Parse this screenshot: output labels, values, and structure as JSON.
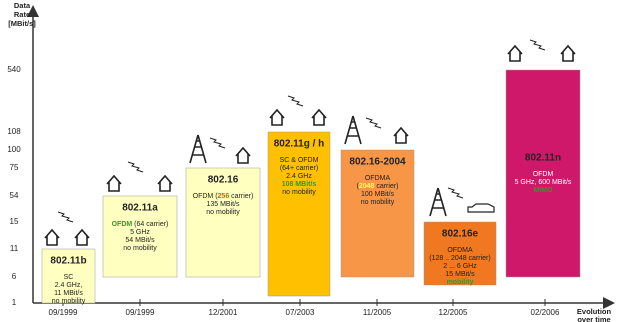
{
  "axis": {
    "y_label": [
      "Data",
      "Rate",
      "[MBit/s]"
    ],
    "x_label": [
      "Evolution",
      "over time"
    ],
    "y_ticks": [
      "540",
      "108",
      "100",
      "75",
      "54",
      "15",
      "11",
      "6",
      "1"
    ]
  },
  "dates": [
    "09/1999",
    "09/1999",
    "12/2001",
    "07/2003",
    "11/2005",
    "12/2005",
    "02/2006"
  ],
  "boxes": [
    {
      "title": "802.11b",
      "lines": [
        [
          "SC"
        ],
        [
          "2.4 GHz,"
        ],
        [
          "11 MBit/s"
        ],
        [
          "no mobility"
        ]
      ]
    },
    {
      "title": "802.11a",
      "lines": [
        [
          {
            "text": "OFDM",
            "color": "#2e9a2e"
          },
          " (64 carrier)"
        ],
        [
          "5 GHz"
        ],
        [
          "54 MBit/s"
        ],
        [
          "no mobility"
        ]
      ]
    },
    {
      "title": "802.16",
      "lines": [
        [
          "OFDM (",
          {
            "text": "256",
            "color": "#e06000"
          },
          " carrier)"
        ],
        [
          "135 MBit/s"
        ],
        [
          "no mobility"
        ]
      ]
    },
    {
      "title": "802.11g / h",
      "lines": [
        [
          "SC & OFDM"
        ],
        [
          "(64+ carrier)"
        ],
        [
          "2.4 GHz"
        ],
        [
          {
            "text": "108 MBit/s",
            "color": "#2e9a2e"
          }
        ],
        [
          "no mobility"
        ]
      ]
    },
    {
      "title": "802.16-2004",
      "lines": [
        [
          "OFDMA"
        ],
        [
          "(",
          {
            "text": "2048",
            "color": "#ffff60"
          },
          " carrier)"
        ],
        [
          "100 MBit/s"
        ],
        [
          "no mobility"
        ]
      ]
    },
    {
      "title": "802.16e",
      "lines": [
        [
          "OFDMA"
        ],
        [
          "(128 .. 2048 carrier)"
        ],
        [
          "2 ... 6 GHz"
        ],
        [
          "15 MBit/s"
        ],
        [
          {
            "text": "mobility",
            "color": "#2e9a2e"
          }
        ]
      ]
    },
    {
      "title": "802.11n",
      "lines": [
        [
          "OFDM"
        ],
        [
          "5 GHz, 600 MBit/s"
        ],
        [
          {
            "text": "MIMO",
            "color": "#2e9a2e"
          }
        ]
      ]
    }
  ]
}
